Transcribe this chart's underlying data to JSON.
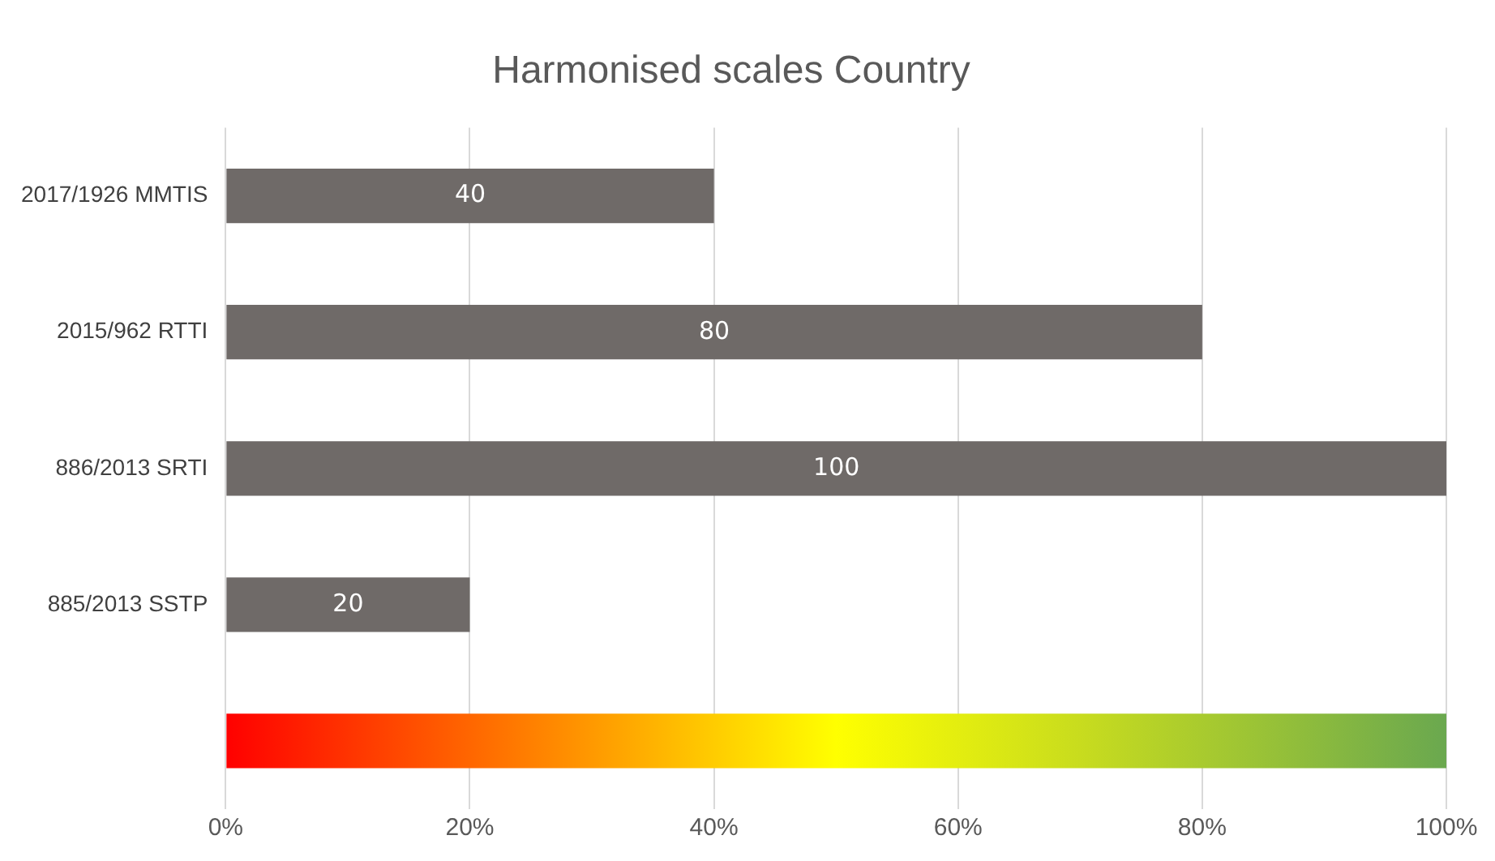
{
  "chart_data": {
    "type": "bar",
    "orientation": "horizontal",
    "title": "Harmonised scales Country",
    "categories": [
      "2017/1926 MMTIS",
      "2015/962 RTTI",
      "886/2013 SRTI",
      "885/2013 SSTP",
      null
    ],
    "values": [
      40,
      80,
      100,
      20,
      100
    ],
    "value_labels": [
      "40",
      "80",
      "100",
      "20",
      null
    ],
    "colors": [
      "#6f6a68",
      "#6f6a68",
      "#6f6a68",
      "#6f6a68",
      "#ffff00"
    ],
    "xlim": [
      0,
      100
    ],
    "xticks": [
      {
        "value": 0,
        "label": "0%"
      },
      {
        "value": 20,
        "label": "20%"
      },
      {
        "value": 40,
        "label": "40%"
      },
      {
        "value": 60,
        "label": "60%"
      },
      {
        "value": 80,
        "label": "80%"
      },
      {
        "value": 100,
        "label": "100%"
      }
    ],
    "grid": "x",
    "legend": false
  }
}
